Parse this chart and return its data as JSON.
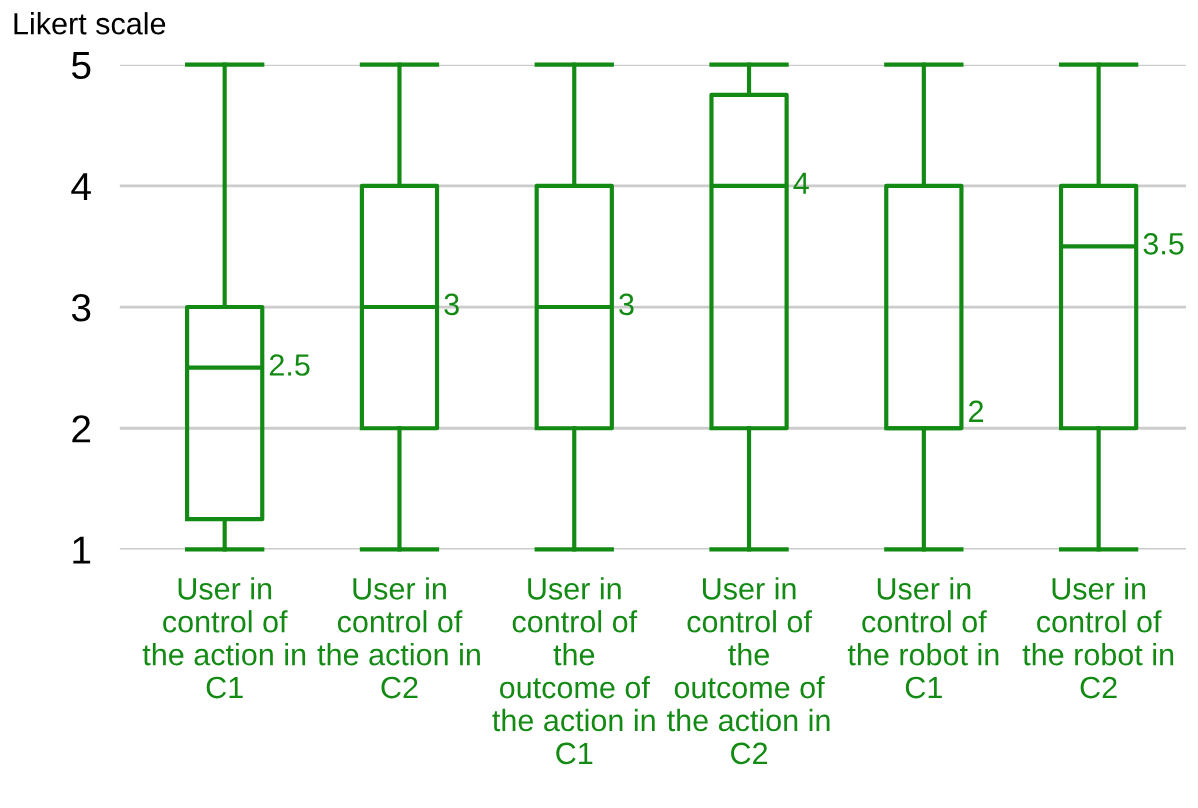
{
  "chart_data": {
    "type": "box",
    "ylabel": "Likert scale",
    "categories": [
      "User in\ncontrol of\nthe action in\nC1",
      "User in\ncontrol of\nthe action in\nC2",
      "User in\ncontrol of\nthe\noutcome of\nthe action in\nC1",
      "User in\ncontrol of\nthe\noutcome of\nthe action in\nC2",
      "User in\ncontrol of\nthe robot in\nC1",
      "User in\ncontrol of\nthe robot in\nC2"
    ],
    "boxes": [
      {
        "low": 1,
        "q1": 1.25,
        "median": 2.5,
        "q3": 3,
        "high": 5
      },
      {
        "low": 1,
        "q1": 2,
        "median": 3,
        "q3": 4,
        "high": 5
      },
      {
        "low": 1,
        "q1": 2,
        "median": 3,
        "q3": 4,
        "high": 5
      },
      {
        "low": 1,
        "q1": 2,
        "median": 4,
        "q3": 4.75,
        "high": 5
      },
      {
        "low": 1,
        "q1": 2,
        "median": 2,
        "q3": 4,
        "high": 5
      },
      {
        "low": 1,
        "q1": 2,
        "median": 3.5,
        "q3": 4,
        "high": 5
      }
    ],
    "value_labels": [
      "2.5",
      "3",
      "3",
      "4",
      "2",
      "3.5"
    ],
    "color": "#138a13",
    "ylim": [
      1,
      5
    ],
    "yticks": [
      1,
      2,
      3,
      4,
      5
    ],
    "grid": "y"
  }
}
